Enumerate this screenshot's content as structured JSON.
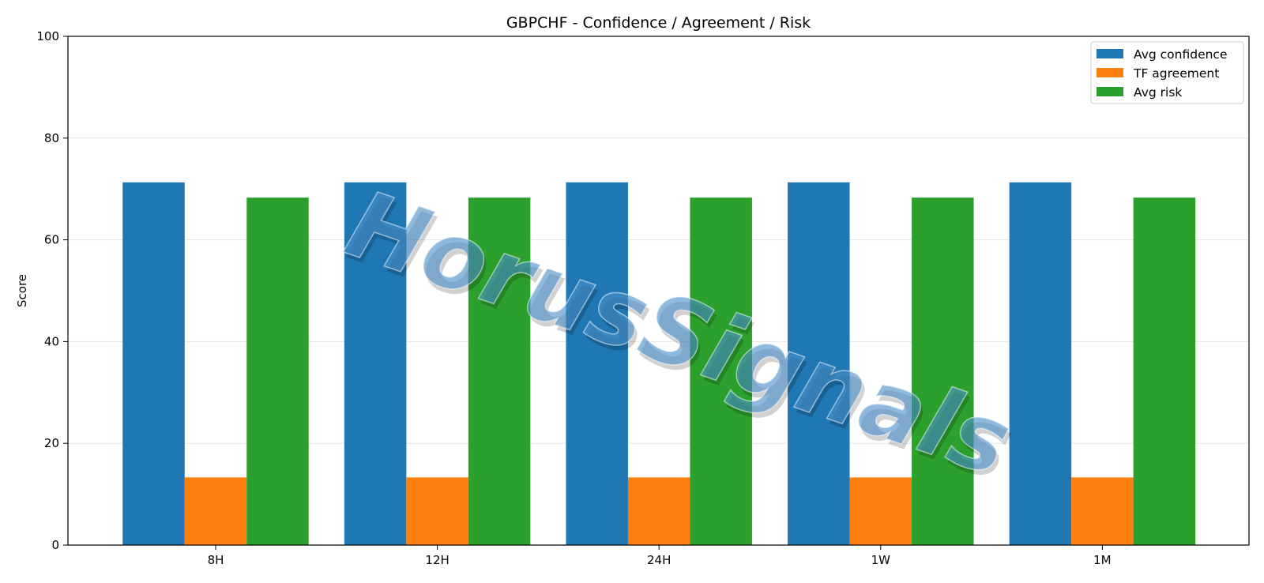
{
  "chart_data": {
    "type": "bar",
    "title": "GBPCHF - Confidence / Agreement / Risk",
    "xlabel": "",
    "ylabel": "Score",
    "ylim": [
      0,
      100
    ],
    "yticks": [
      0,
      20,
      40,
      60,
      80,
      100
    ],
    "grid": "y-axis only",
    "legend_position": "top-right",
    "categories": [
      "8H",
      "12H",
      "24H",
      "1W",
      "1M"
    ],
    "series": [
      {
        "name": "Avg confidence",
        "color": "#1f77b4",
        "values": [
          71.3,
          71.3,
          71.3,
          71.3,
          71.3
        ]
      },
      {
        "name": "TF agreement",
        "color": "#ff7f0e",
        "values": [
          13.3,
          13.3,
          13.3,
          13.3,
          13.3
        ]
      },
      {
        "name": "Avg risk",
        "color": "#2ca02c",
        "values": [
          68.3,
          68.3,
          68.3,
          68.3,
          68.3
        ]
      }
    ]
  },
  "watermark": {
    "text": "HorusSignals",
    "color": "#4a90c8"
  }
}
